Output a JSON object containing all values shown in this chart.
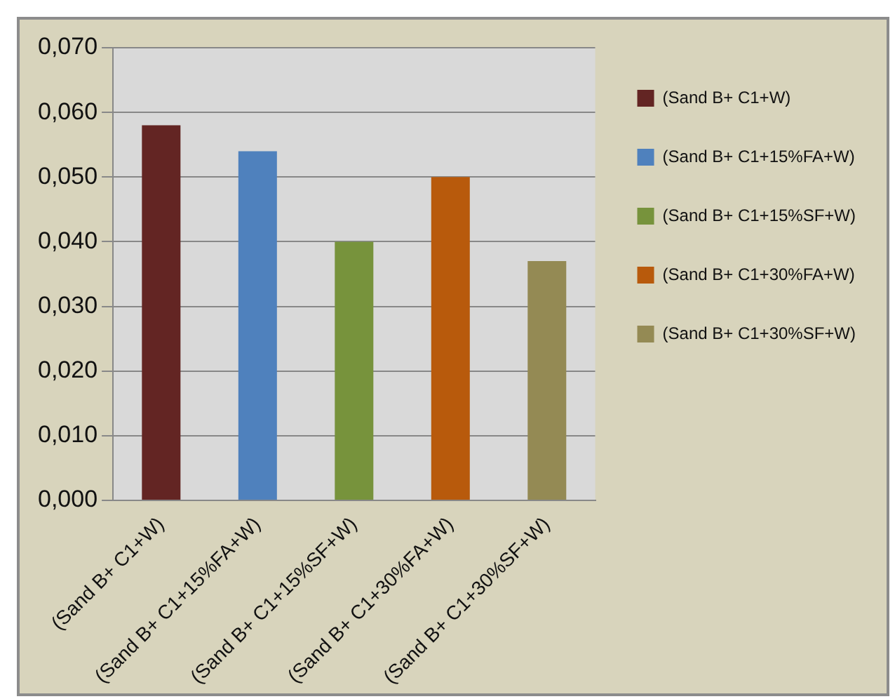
{
  "chart_data": {
    "type": "bar",
    "categories": [
      "(Sand B+ C1+W)",
      "(Sand B+ C1+15%FA+W)",
      "(Sand B+ C1+15%SF+W)",
      "(Sand B+ C1+30%FA+W)",
      "(Sand B+ C1+30%SF+W)"
    ],
    "series": [
      {
        "name": "(Sand B+ C1+W)",
        "color": "#632523",
        "values": [
          0.058,
          null,
          null,
          null,
          null
        ]
      },
      {
        "name": "(Sand B+ C1+15%FA+W)",
        "color": "#4f81bd",
        "values": [
          null,
          0.054,
          null,
          null,
          null
        ]
      },
      {
        "name": "(Sand B+ C1+15%SF+W)",
        "color": "#77933c",
        "values": [
          null,
          null,
          0.04,
          null,
          null
        ]
      },
      {
        "name": "(Sand B+ C1+30%FA+W)",
        "color": "#b85a0c",
        "values": [
          null,
          null,
          null,
          0.05,
          null
        ]
      },
      {
        "name": "(Sand B+ C1+30%SF+W)",
        "color": "#948a54",
        "values": [
          null,
          null,
          null,
          null,
          0.037
        ]
      }
    ],
    "ylim": [
      0,
      0.07
    ],
    "yticks": [
      {
        "value": 0,
        "label": "0,000"
      },
      {
        "value": 0.01,
        "label": "0,010"
      },
      {
        "value": 0.02,
        "label": "0,020"
      },
      {
        "value": 0.03,
        "label": "0,030"
      },
      {
        "value": 0.04,
        "label": "0,040"
      },
      {
        "value": 0.05,
        "label": "0,050"
      },
      {
        "value": 0.06,
        "label": "0,060"
      },
      {
        "value": 0.07,
        "label": "0,070"
      }
    ],
    "grid": "y",
    "legend": "right"
  }
}
